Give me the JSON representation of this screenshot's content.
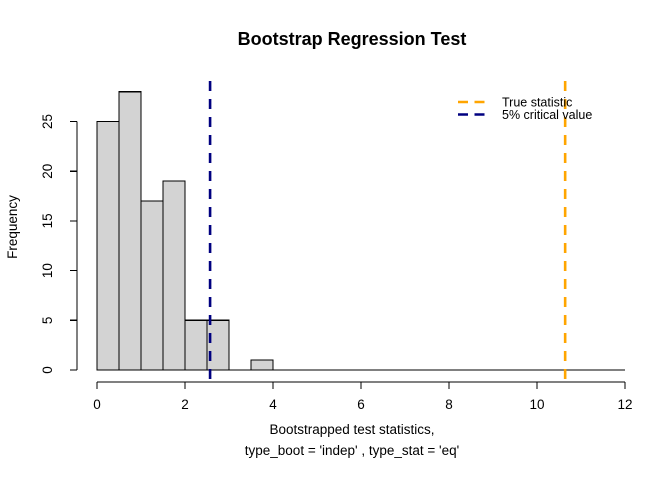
{
  "window": {
    "background": "#FFFFFF"
  },
  "chart_data": {
    "type": "bar",
    "subtype": "histogram",
    "title": "Bootstrap Regression Test",
    "ylabel": "Frequency",
    "xlabel_lines": [
      "Bootstrapped test statistics,",
      "type_boot = 'indep' , type_stat = 'eq'"
    ],
    "bins": {
      "start": 0,
      "bin_width": 0.5,
      "counts": [
        25,
        28,
        17,
        19,
        5,
        5,
        0,
        1
      ]
    },
    "baseline_extent": [
      0,
      12
    ],
    "xlim": [
      0,
      12
    ],
    "ylim": [
      0,
      28
    ],
    "x_ticks": [
      0,
      2,
      4,
      6,
      8,
      10,
      12
    ],
    "y_ticks": [
      0,
      5,
      10,
      15,
      20,
      25
    ],
    "grid": false,
    "bar_fill": "#D3D3D3",
    "bar_stroke": "#000000",
    "axis_color": "#000000",
    "vlines": [
      {
        "label": "True statistic",
        "x": 10.64,
        "color": "#FFA500",
        "style": "dashed"
      },
      {
        "label": "5% critical value",
        "x": 2.57,
        "color": "#000080",
        "style": "dashed"
      }
    ],
    "legend": {
      "position": "topright",
      "items": [
        {
          "label": "True statistic",
          "color": "#FFA500",
          "line_style": "dashed"
        },
        {
          "label": "5% critical value",
          "color": "#000080",
          "line_style": "dashed"
        }
      ]
    }
  }
}
